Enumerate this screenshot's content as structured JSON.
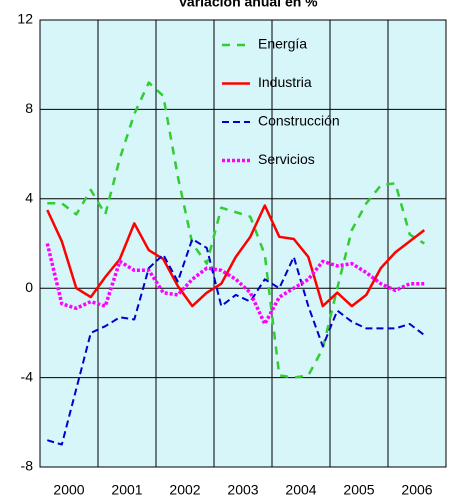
{
  "chart_data": {
    "type": "line",
    "title": "Variación anual en %",
    "categories": [
      "2000",
      null,
      null,
      null,
      "2001",
      null,
      null,
      null,
      "2002",
      null,
      null,
      null,
      "2003",
      null,
      null,
      null,
      "2004",
      null,
      null,
      null,
      "2005",
      null,
      null,
      null,
      "2006",
      null,
      null
    ],
    "series": [
      {
        "name": "Energía",
        "color": "#33cc33",
        "values": [
          3.8,
          3.8,
          3.3,
          4.4,
          3.3,
          5.8,
          7.8,
          9.2,
          8.6,
          5.0,
          2.0,
          1.1,
          3.6,
          3.4,
          3.2,
          1.5,
          -3.9,
          -4.0,
          -3.9,
          -2.7,
          0.0,
          2.6,
          3.8,
          4.6,
          4.7,
          2.4,
          2.0
        ]
      },
      {
        "name": "Industria",
        "color": "#ff0000",
        "values": [
          3.5,
          2.1,
          0.0,
          -0.4,
          0.5,
          1.3,
          2.9,
          1.7,
          1.3,
          0.1,
          -0.8,
          -0.2,
          0.2,
          1.4,
          2.3,
          3.7,
          2.3,
          2.2,
          1.4,
          -0.8,
          -0.2,
          -0.8,
          -0.3,
          0.9,
          1.6,
          2.1,
          2.6
        ]
      },
      {
        "name": "Construcción",
        "color": "#0000cc",
        "values": [
          -6.8,
          -7.0,
          -4.5,
          -2.0,
          -1.7,
          -1.3,
          -1.4,
          0.9,
          1.5,
          0.3,
          2.2,
          1.8,
          -0.8,
          -0.3,
          -0.6,
          0.4,
          0.0,
          1.4,
          -0.8,
          -2.6,
          -1.0,
          -1.5,
          -1.8,
          -1.8,
          -1.8,
          -1.6,
          -2.1
        ]
      },
      {
        "name": "Servicios",
        "color": "#ff00ff",
        "values": [
          2.0,
          -0.7,
          -0.9,
          -0.6,
          -0.8,
          1.2,
          0.8,
          0.8,
          -0.2,
          -0.3,
          0.4,
          0.9,
          0.8,
          0.4,
          -0.2,
          -1.6,
          -0.4,
          0.0,
          0.4,
          1.2,
          1.0,
          1.1,
          0.7,
          0.2,
          -0.1,
          0.2,
          0.2
        ]
      }
    ],
    "ylim": [
      -8,
      12
    ],
    "yticks": [
      -8,
      -4,
      0,
      4,
      8,
      12
    ],
    "grid": true
  }
}
